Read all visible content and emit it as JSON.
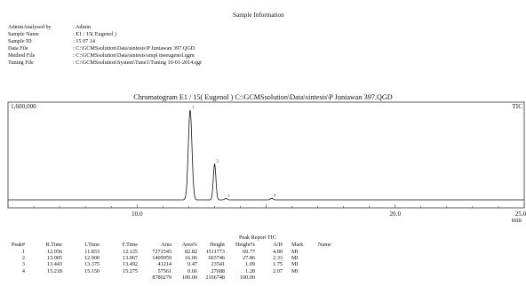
{
  "header": {
    "title": "Sample Information"
  },
  "sample_info": [
    {
      "key": "AdminAnalyzed by",
      "value": ": Admin"
    },
    {
      "key": "Sample Name",
      "value": ": E1 / 15( Eugenol )"
    },
    {
      "key": "Sample ID",
      "value": ": 15 07 14"
    },
    {
      "key": "Data File",
      "value": ": C:\\GCMSsolution\\Data\\sintesis\\P Juniawan 397.QGD"
    },
    {
      "key": "Method File",
      "value": ": C:\\GCMSsolution\\Data\\sintesis\\smpl ineeugenol.qgm"
    },
    {
      "key": "Tuning File",
      "value": ": C:\\GCMSsolution\\System\\Tune1\\Tuning 10-01-2014.qgt"
    }
  ],
  "chromatogram": {
    "title": "Chromatogram E1 / 15( Eugenol ) C:\\GCMSsolution\\Data\\sintesis\\P Juniawan 397.QGD",
    "tic_label": "TIC",
    "y_max_label": "1,600,000",
    "x_unit": "min",
    "x_tick_labels": [
      "10.0",
      "20.0",
      "25.0"
    ]
  },
  "chart_data": {
    "type": "line",
    "title": "Chromatogram E1 / 15( Eugenol ) C:\\GCMSsolution\\Data\\sintesis\\P Juniawan 397.QGD",
    "xlabel": "min",
    "ylabel": "",
    "xlim": [
      5.0,
      25.0
    ],
    "ylim": [
      0,
      1600000
    ],
    "x_ticks": [
      10.0,
      20.0,
      25.0
    ],
    "grid": false,
    "series": [
      {
        "name": "TIC",
        "peaks": [
          {
            "x": 12.056,
            "height": 1511773
          },
          {
            "x": 13.005,
            "height": 603746
          },
          {
            "x": 13.443,
            "height": 23541
          },
          {
            "x": 15.218,
            "height": 27688
          }
        ]
      }
    ],
    "peak_markers": [
      "1",
      "2",
      "3",
      "4"
    ]
  },
  "peak_report": {
    "title": "Peak Report TIC",
    "columns": [
      "Peak#",
      "R.Time",
      "I.Time",
      "F.Time",
      "Area",
      "Area%",
      "Height",
      "Height%",
      "A/H",
      "Mark",
      "Name"
    ],
    "rows": [
      [
        "1",
        "12.056",
        "11.833",
        "12.125",
        "7271545",
        "82.82",
        "1511773",
        "69.77",
        "4.80",
        "MI",
        ""
      ],
      [
        "2",
        "13.005",
        "12.900",
        "13.067",
        "1409959",
        "16.06",
        "603746",
        "27.86",
        "2.33",
        "MI",
        ""
      ],
      [
        "3",
        "13.443",
        "13.375",
        "13.492",
        "41214",
        "0.47",
        "23541",
        "1.09",
        "1.75",
        "MI",
        ""
      ],
      [
        "4",
        "15.218",
        "15.150",
        "15.275",
        "57561",
        "0.66",
        "27688",
        "1.28",
        "2.07",
        "MI",
        ""
      ]
    ],
    "totals": [
      "",
      "",
      "",
      "",
      "8780279",
      "100.00",
      "2166748",
      "100.00",
      "",
      "",
      ""
    ]
  }
}
